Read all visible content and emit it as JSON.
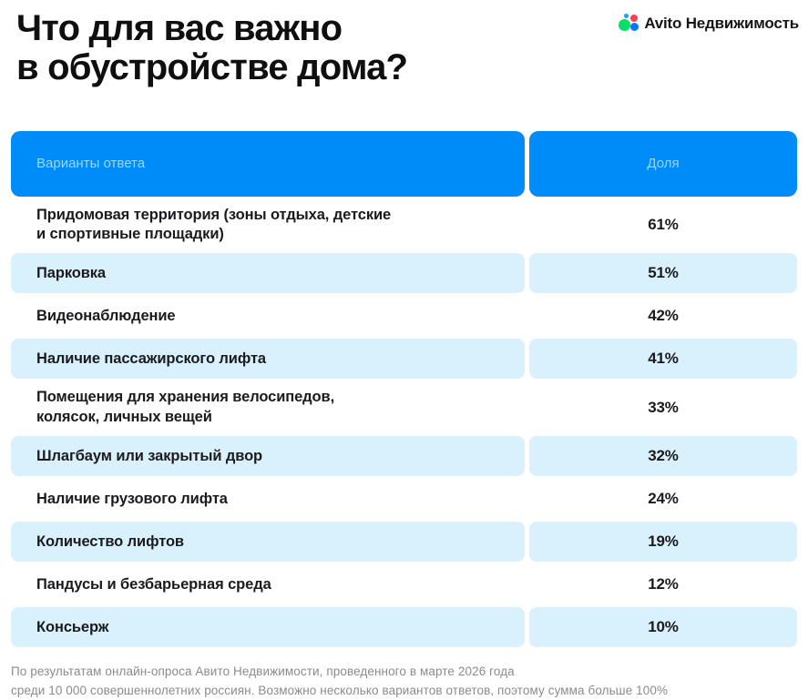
{
  "header": {
    "title": "Что для вас важно\nв обустройстве дома?",
    "brand": {
      "name": "Avito Недвижимость"
    }
  },
  "table": {
    "columns": {
      "answers": "Варианты ответа",
      "share": "Доля"
    },
    "rows": [
      {
        "label": "Придомовая территория (зоны отдыха, детские\nи спортивные площадки)",
        "value": "61%"
      },
      {
        "label": "Парковка",
        "value": "51%"
      },
      {
        "label": "Видеонаблюдение",
        "value": "42%"
      },
      {
        "label": "Наличие пассажирского лифта",
        "value": "41%"
      },
      {
        "label": "Помещения для хранения велосипедов,\nколясок, личных вещей",
        "value": "33%"
      },
      {
        "label": "Шлагбаум или закрытый двор",
        "value": "32%"
      },
      {
        "label": "Наличие грузового лифта",
        "value": "24%"
      },
      {
        "label": "Количество лифтов",
        "value": "19%"
      },
      {
        "label": "Пандусы и безбарьерная среда",
        "value": "12%"
      },
      {
        "label": "Консьерж",
        "value": "10%"
      }
    ]
  },
  "footer": {
    "note": "По результатам онлайн-опроса Авито Недвижимости, проведенного в марте 2026 года\nсреди 10 000 совершеннолетних россиян. Возможно несколько вариантов ответов, поэтому сумма больше 100%"
  },
  "colors": {
    "header_bg": "#008CF8",
    "header_text": "#9BD7FF",
    "row_alt_bg": "#D9F1FC",
    "body_text": "#1B1B1E",
    "footer_text": "#8B8B8B",
    "logo_green": "#04E061",
    "logo_red": "#FF4053",
    "logo_blue": "#0077F6",
    "logo_lightblue": "#00AAFF"
  },
  "chart_data": {
    "type": "table",
    "title": "Что для вас важно в обустройстве дома?",
    "columns": [
      "Варианты ответа",
      "Доля"
    ],
    "categories": [
      "Придомовая территория (зоны отдыха, детские и спортивные площадки)",
      "Парковка",
      "Видеонаблюдение",
      "Наличие пассажирского лифта",
      "Помещения для хранения велосипедов, колясок, личных вещей",
      "Шлагбаум или закрытый двор",
      "Наличие грузового лифта",
      "Количество лифтов",
      "Пандусы и безбарьерная среда",
      "Консьерж"
    ],
    "values": [
      61,
      51,
      42,
      41,
      33,
      32,
      24,
      19,
      12,
      10
    ],
    "unit": "%",
    "source_note": "По результатам онлайн-опроса Авито Недвижимости, проведенного в марте 2026 года среди 10 000 совершеннолетних россиян. Возможно несколько вариантов ответов, поэтому сумма больше 100%"
  }
}
